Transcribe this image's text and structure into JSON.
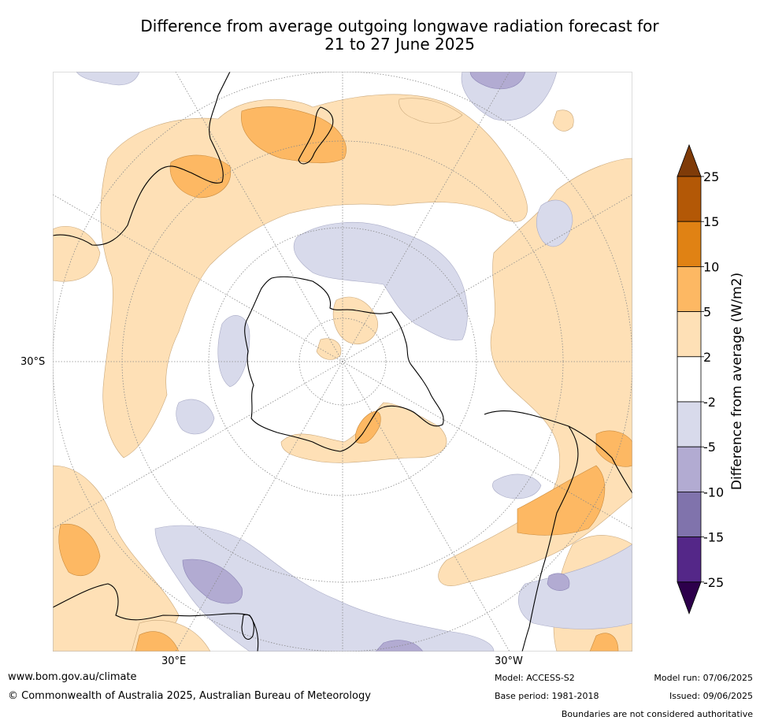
{
  "title": {
    "line1": "Difference from average outgoing longwave radiation forecast for",
    "line2": "21 to 27 June 2025"
  },
  "map": {
    "projection": "south-polar-stereographic",
    "lat_labels": [
      "30°S"
    ],
    "lon_labels": [
      "30°E",
      "30°W"
    ],
    "legend_title": "Difference from average (W/m2)",
    "legend_levels": [
      "25",
      "15",
      "10",
      "5",
      "2",
      "-2",
      "-5",
      "-10",
      "-15",
      "-25"
    ],
    "legend_colors": [
      "#7f3b08",
      "#b35806",
      "#e08214",
      "#fdb863",
      "#fee0b6",
      "#ffffff",
      "#d8daeb",
      "#b2abd2",
      "#8073ac",
      "#542788",
      "#2d004b"
    ],
    "colors": {
      "positive_light": "#fee0b6",
      "positive_medium": "#fdb863",
      "negative_light": "#d8daeb",
      "negative_medium": "#b2abd2",
      "coastline": "#000000",
      "graticule": "#8a8a8a"
    }
  },
  "footer": {
    "website": "www.bom.gov.au/climate",
    "copyright": "© Commonwealth of Australia 2025, Australian Bureau of Meteorology",
    "model": "Model: ACCESS-S2",
    "base_period": "Base period: 1981-2018",
    "model_run": "Model run: 07/06/2025",
    "issued": "Issued: 09/06/2025",
    "disclaimer": "Boundaries are not considered authoritative"
  }
}
